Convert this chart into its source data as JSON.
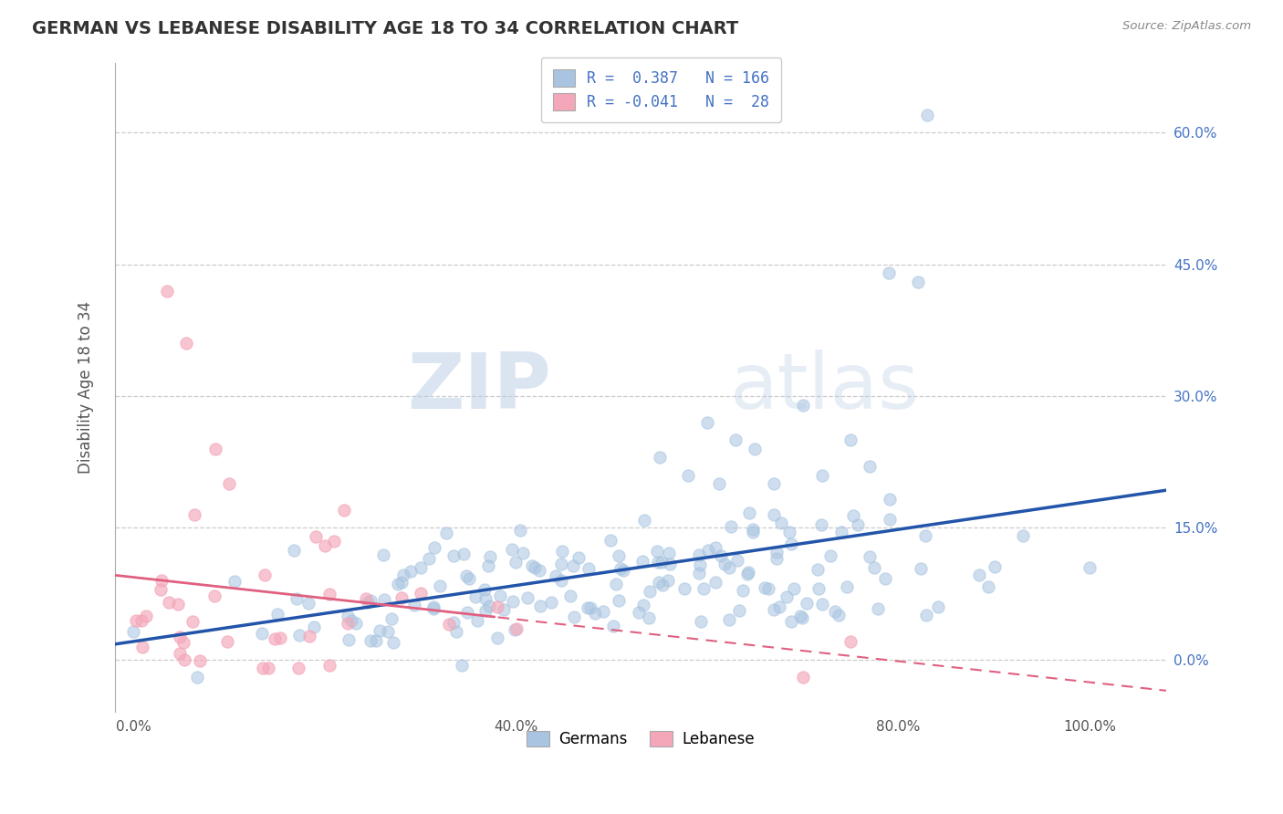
{
  "title": "GERMAN VS LEBANESE DISABILITY AGE 18 TO 34 CORRELATION CHART",
  "source": "Source: ZipAtlas.com",
  "ylabel_label": "Disability Age 18 to 34",
  "x_ticks": [
    0.0,
    0.2,
    0.4,
    0.6,
    0.8,
    1.0
  ],
  "x_tick_labels": [
    "0.0%",
    "",
    "40.0%",
    "",
    "80.0%",
    "100.0%"
  ],
  "y_ticks": [
    0.0,
    0.15,
    0.3,
    0.45,
    0.6
  ],
  "y_tick_labels_right": [
    "0.0%",
    "15.0%",
    "30.0%",
    "45.0%",
    "60.0%"
  ],
  "xlim": [
    -0.02,
    1.08
  ],
  "ylim": [
    -0.06,
    0.68
  ],
  "german_R": 0.387,
  "german_N": 166,
  "lebanese_R": -0.041,
  "lebanese_N": 28,
  "german_color": "#a8c4e0",
  "lebanese_color": "#f4a7b9",
  "german_line_color": "#2255aa",
  "lebanese_line_color": "#e06080",
  "watermark_zip": "ZIP",
  "watermark_atlas": "atlas",
  "background_color": "#ffffff",
  "grid_color": "#cccccc",
  "title_color": "#333333",
  "label_color": "#555555",
  "source_color": "#888888",
  "right_tick_color": "#4472c4",
  "legend_german_text": "R =  0.387   N = 166",
  "legend_lebanese_text": "R = -0.041   N =  28"
}
